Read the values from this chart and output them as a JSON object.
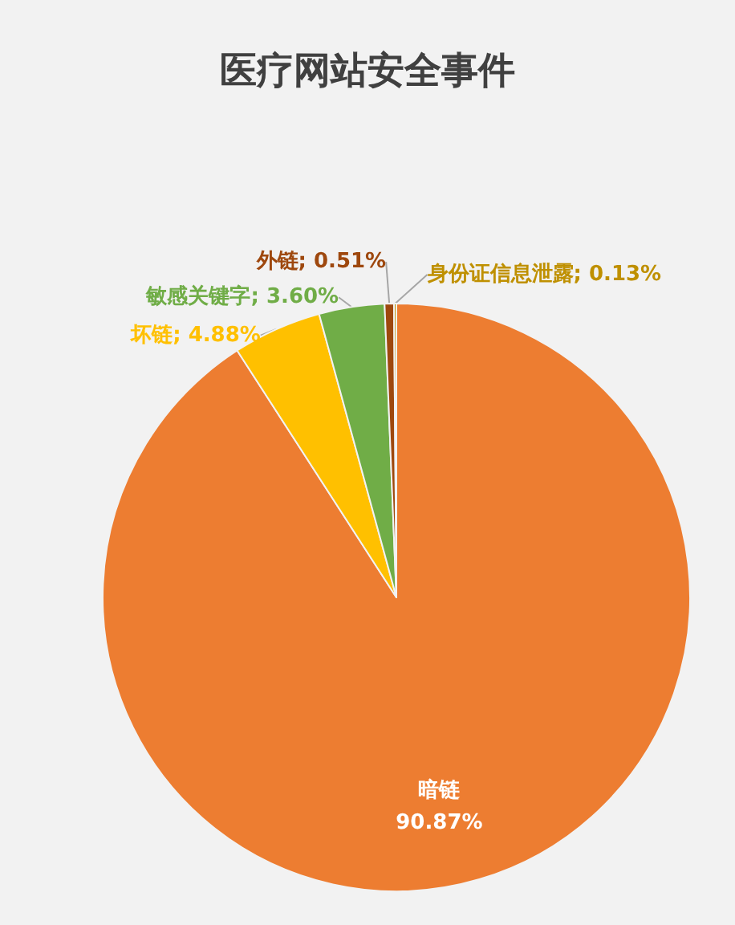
{
  "chart_data": {
    "type": "pie",
    "title": "医疗网站安全事件",
    "categories": [
      "暗链",
      "坏链",
      "敏感关键字",
      "外链",
      "身份证信息泄露"
    ],
    "values": [
      90.87,
      4.88,
      3.6,
      0.51,
      0.13
    ],
    "value_labels": [
      "90.87%",
      "4.88%",
      "3.60%",
      "0.51%",
      "0.13%"
    ],
    "colors": [
      "#ed7d31",
      "#ffc000",
      "#70ad47",
      "#9e480e",
      "#bf9000"
    ],
    "legend": false
  }
}
